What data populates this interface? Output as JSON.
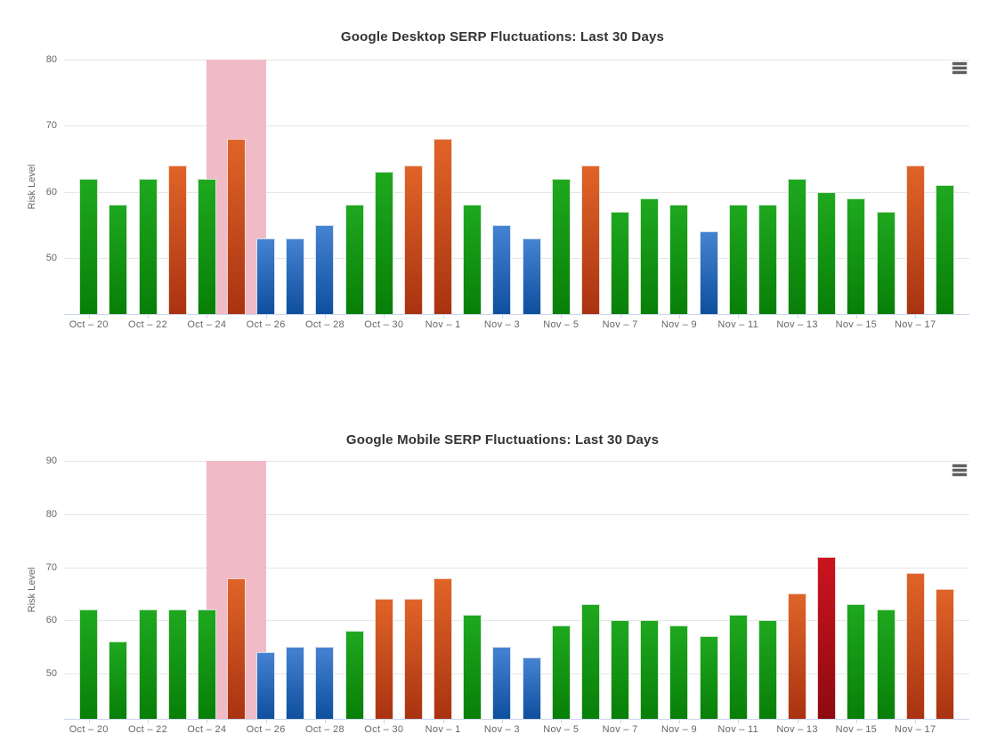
{
  "palette": {
    "background": "#ffffff",
    "green": {
      "top": "#1fa81f",
      "bottom": "#087f08"
    },
    "orange": {
      "top": "#e06428",
      "bottom": "#a93311"
    },
    "blue": {
      "top": "#4682d2",
      "bottom": "#0e4f9e"
    },
    "red": {
      "top": "#cb141f",
      "bottom": "#8e0a10"
    },
    "plot_band": "#f0bac7",
    "grid_line": "#e6e6e6",
    "axis_line": "#ccd6eb",
    "tick_label": "#666666",
    "title": "#333333",
    "menu_icon": "#5f5f5f"
  },
  "chart_data": [
    {
      "type": "bar",
      "title": "Google Desktop SERP Fluctuations: Last 30 Days",
      "ylabel": "Risk Level",
      "xlabel": "",
      "grid": true,
      "legend": false,
      "export_menu": {
        "icon": "hamburger-icon"
      },
      "categories": [
        "Oct 20",
        "Oct 21",
        "Oct 22",
        "Oct 23",
        "Oct 24",
        "Oct 25",
        "Oct 26",
        "Oct 27",
        "Oct 28",
        "Oct 29",
        "Oct 30",
        "Oct 31",
        "Nov 1",
        "Nov 2",
        "Nov 3",
        "Nov 4",
        "Nov 5",
        "Nov 6",
        "Nov 7",
        "Nov 8",
        "Nov 9",
        "Nov 10",
        "Nov 11",
        "Nov 12",
        "Nov 13",
        "Nov 14",
        "Nov 15",
        "Nov 16",
        "Nov 17",
        "Nov 18"
      ],
      "values": [
        62,
        58,
        62,
        64,
        62,
        68,
        53,
        53,
        55,
        58,
        63,
        64,
        68,
        58,
        55,
        53,
        62,
        64,
        57,
        59,
        58,
        54,
        58,
        58,
        62,
        60,
        59,
        57,
        64,
        61
      ],
      "colors": [
        "green",
        "green",
        "green",
        "orange",
        "green",
        "orange",
        "blue",
        "blue",
        "blue",
        "green",
        "green",
        "orange",
        "orange",
        "green",
        "blue",
        "blue",
        "green",
        "orange",
        "green",
        "green",
        "green",
        "blue",
        "green",
        "green",
        "green",
        "green",
        "green",
        "green",
        "orange",
        "green"
      ],
      "xticks": [
        "Oct – 20",
        "Oct – 22",
        "Oct – 24",
        "Oct – 26",
        "Oct – 28",
        "Oct – 30",
        "Nov – 1",
        "Nov – 3",
        "Nov – 5",
        "Nov – 7",
        "Nov – 9",
        "Nov – 11",
        "Nov – 13",
        "Nov – 15",
        "Nov – 17"
      ],
      "yticks": [
        50,
        60,
        70,
        80
      ],
      "ylim": [
        41.5,
        80
      ],
      "plot_band": {
        "from_category": "Oct 24",
        "to_category": "Oct 26",
        "from_index": 4,
        "to_index": 6,
        "color": "#f0bac7"
      }
    },
    {
      "type": "bar",
      "title": "Google Mobile SERP Fluctuations: Last 30 Days",
      "ylabel": "Risk Level",
      "xlabel": "",
      "grid": true,
      "legend": false,
      "export_menu": {
        "icon": "hamburger-icon"
      },
      "categories": [
        "Oct 20",
        "Oct 21",
        "Oct 22",
        "Oct 23",
        "Oct 24",
        "Oct 25",
        "Oct 26",
        "Oct 27",
        "Oct 28",
        "Oct 29",
        "Oct 30",
        "Oct 31",
        "Nov 1",
        "Nov 2",
        "Nov 3",
        "Nov 4",
        "Nov 5",
        "Nov 6",
        "Nov 7",
        "Nov 8",
        "Nov 9",
        "Nov 10",
        "Nov 11",
        "Nov 12",
        "Nov 13",
        "Nov 14",
        "Nov 15",
        "Nov 16",
        "Nov 17",
        "Nov 18"
      ],
      "values": [
        62,
        56,
        62,
        62,
        62,
        68,
        54,
        55,
        55,
        58,
        64,
        64,
        68,
        61,
        55,
        53,
        59,
        63,
        60,
        60,
        59,
        57,
        61,
        60,
        65,
        72,
        63,
        62,
        69,
        66
      ],
      "colors": [
        "green",
        "green",
        "green",
        "green",
        "green",
        "orange",
        "blue",
        "blue",
        "blue",
        "green",
        "orange",
        "orange",
        "orange",
        "green",
        "blue",
        "blue",
        "green",
        "green",
        "green",
        "green",
        "green",
        "green",
        "green",
        "green",
        "orange",
        "red",
        "green",
        "green",
        "orange",
        "orange"
      ],
      "xticks": [
        "Oct – 20",
        "Oct – 22",
        "Oct – 24",
        "Oct – 26",
        "Oct – 28",
        "Oct – 30",
        "Nov – 1",
        "Nov – 3",
        "Nov – 5",
        "Nov – 7",
        "Nov – 9",
        "Nov – 11",
        "Nov – 13",
        "Nov – 15",
        "Nov – 17"
      ],
      "yticks": [
        50,
        60,
        70,
        80,
        90
      ],
      "ylim": [
        41.5,
        90
      ],
      "plot_band": {
        "from_category": "Oct 24",
        "to_category": "Oct 26",
        "from_index": 4,
        "to_index": 6,
        "color": "#f0bac7"
      }
    }
  ]
}
